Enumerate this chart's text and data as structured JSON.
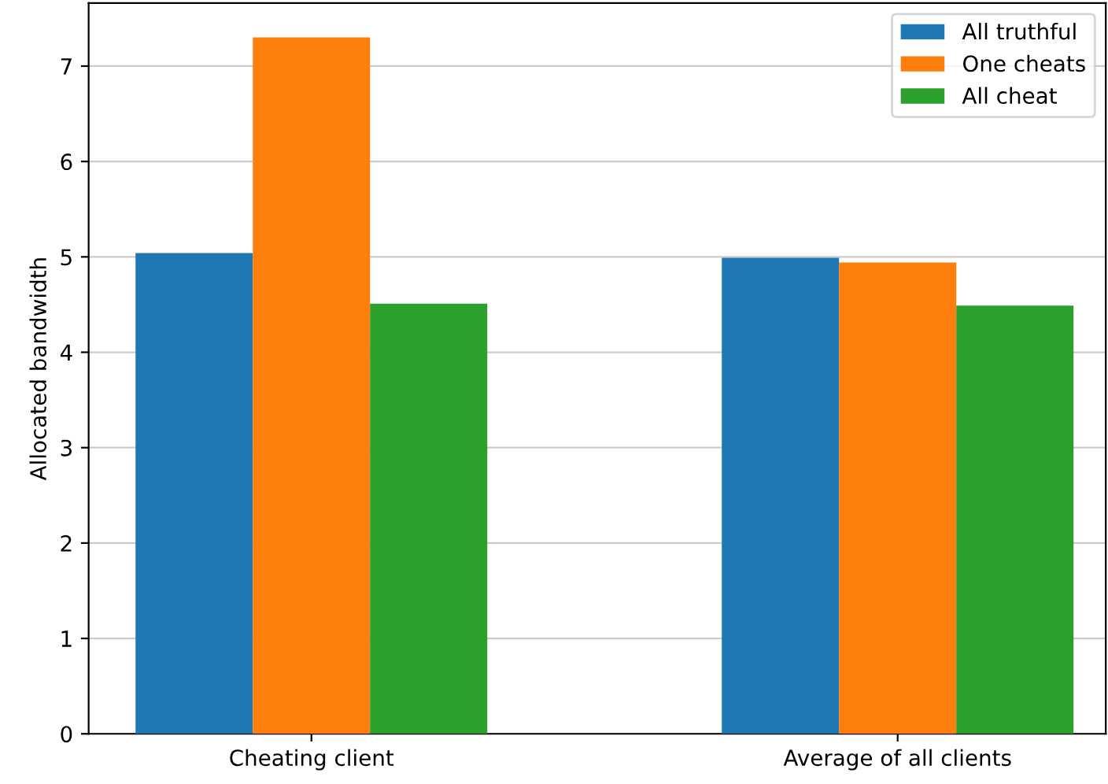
{
  "chart_data": {
    "type": "bar",
    "ylabel": "Allocated bandwidth",
    "categories": [
      "Cheating client",
      "Average of all clients"
    ],
    "series": [
      {
        "name": "All truthful",
        "color": "#1f77b4",
        "values": [
          5.04,
          4.99
        ]
      },
      {
        "name": "One cheats",
        "color": "#ff7f0e",
        "values": [
          7.3,
          4.94
        ]
      },
      {
        "name": "All cheat",
        "color": "#2ca02c",
        "values": [
          4.51,
          4.49
        ]
      }
    ],
    "ylim": [
      0,
      7.66
    ],
    "yticks": [
      0,
      1,
      2,
      3,
      4,
      5,
      6,
      7
    ],
    "grid": "y",
    "legend": "top right"
  }
}
